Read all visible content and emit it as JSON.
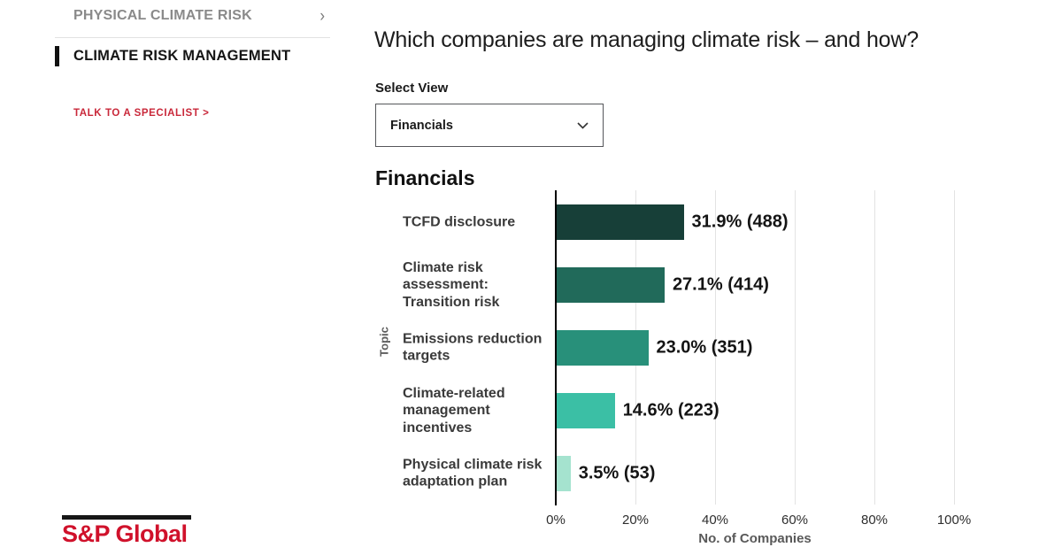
{
  "sidebar": {
    "physical_label": "PHYSICAL CLIMATE RISK",
    "physical_chevron": "›",
    "management_label": "CLIMATE RISK MANAGEMENT",
    "cta_label": "TALK TO A SPECIALIST >"
  },
  "logo": {
    "text": "S&P Global"
  },
  "main": {
    "title": "Which companies are managing climate risk – and how?",
    "select_label": "Select View",
    "select_value": "Financials",
    "chart_heading": "Financials"
  },
  "colors": {
    "accent_red": "#d0112b",
    "sidebar_inactive": "#8a8a8a",
    "axis_line": "#000000",
    "gridline": "#e3e3e3"
  },
  "chart_data": {
    "type": "bar",
    "orientation": "horizontal",
    "title": "Financials",
    "xlabel": "No. of Companies",
    "ylabel": "Topic",
    "xlim": [
      0,
      100
    ],
    "x_ticks": [
      "0%",
      "20%",
      "40%",
      "60%",
      "80%",
      "100%"
    ],
    "grid": "vertical",
    "categories": [
      "TCFD disclosure",
      "Climate risk\nassessment:\nTransition risk",
      "Emissions reduction\ntargets",
      "Climate-related\nmanagement\nincentives",
      "Physical climate risk\nadaptation plan"
    ],
    "values": [
      31.9,
      27.1,
      23.0,
      14.6,
      3.5
    ],
    "counts": [
      488,
      414,
      351,
      223,
      53
    ],
    "value_labels": [
      "31.9% (488)",
      "27.1% (414)",
      "23.0% (351)",
      "14.6% (223)",
      "3.5% (53)"
    ],
    "bar_colors": [
      "#173f38",
      "#216a5a",
      "#28907a",
      "#3bbfa5",
      "#a5e3cf"
    ]
  }
}
